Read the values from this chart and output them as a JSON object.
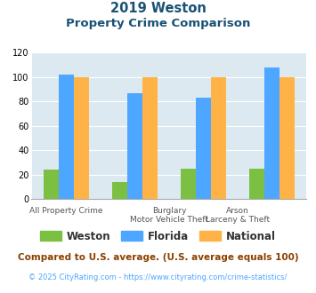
{
  "title_line1": "2019 Weston",
  "title_line2": "Property Crime Comparison",
  "cat_labels_line1": [
    "All Property Crime",
    "Burglary",
    "Arson"
  ],
  "cat_labels_line2": [
    "",
    "Motor Vehicle Theft",
    "Larceny & Theft"
  ],
  "weston": [
    24,
    14,
    25,
    25
  ],
  "florida": [
    102,
    87,
    83,
    108
  ],
  "national": [
    100,
    100,
    100,
    100
  ],
  "weston_color": "#7bc043",
  "florida_color": "#4da6ff",
  "national_color": "#ffb347",
  "bg_color": "#dce9f0",
  "ylim": [
    0,
    120
  ],
  "yticks": [
    0,
    20,
    40,
    60,
    80,
    100,
    120
  ],
  "footnote1": "Compared to U.S. average. (U.S. average equals 100)",
  "footnote2": "© 2025 CityRating.com - https://www.cityrating.com/crime-statistics/",
  "title_color": "#1a5276",
  "footnote1_color": "#8B4000",
  "footnote2_color": "#4da6ff"
}
